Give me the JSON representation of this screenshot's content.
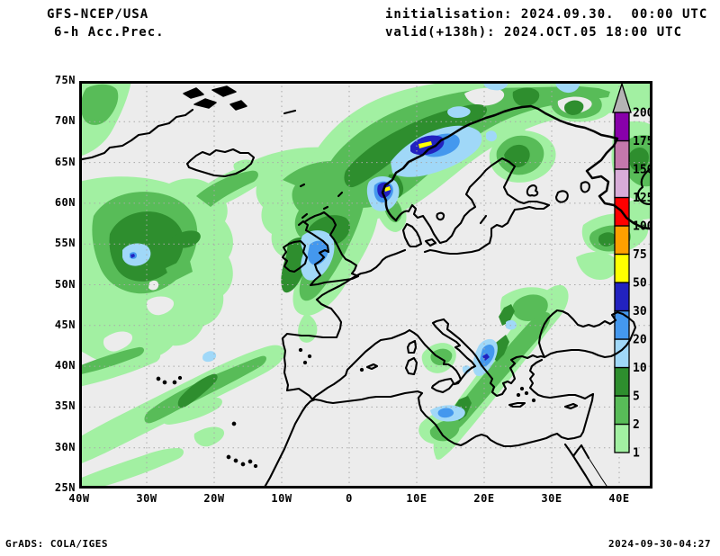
{
  "header": {
    "model": "GFS-NCEP/USA",
    "product": "6-h Acc.Prec.",
    "init_label": "initialisation: 2024.09.30.  00:00 UTC",
    "valid_label": "valid(+138h): 2024.OCT.05 18:00 UTC"
  },
  "footer": {
    "grads_credit": "GrADS: COLA/IGES",
    "timestamp": "2024-09-30-04:27"
  },
  "map": {
    "lat_labels": [
      "75N",
      "70N",
      "65N",
      "60N",
      "55N",
      "50N",
      "45N",
      "40N",
      "35N",
      "30N",
      "25N"
    ],
    "lon_labels": [
      "40W",
      "30W",
      "20W",
      "10W",
      "0",
      "10E",
      "20E",
      "30E",
      "40E"
    ],
    "background_color": "#ececec",
    "coastline_color": "#000000",
    "grid_color": "#a8a8a8"
  },
  "colorbar": {
    "levels": [
      1,
      2,
      5,
      10,
      20,
      30,
      50,
      75,
      100,
      125,
      150,
      175,
      200
    ],
    "colors": [
      "#a2f0a2",
      "#58bc58",
      "#2e8e2e",
      "#a0d8f8",
      "#4498ee",
      "#2222c0",
      "#ffff00",
      "#ffa000",
      "#ff0000",
      "#d8acd8",
      "#c478ac",
      "#8800aa"
    ],
    "overflow_color": "#b4b4b4"
  },
  "chart_data": {
    "type": "heatmap",
    "title": "GFS-NCEP/USA 6-h Acc.Prec.",
    "initialisation": "2024.09.30. 00:00 UTC",
    "valid": "(+138h) 2024.OCT.05 18:00 UTC",
    "x": {
      "label": "longitude",
      "ticks": [
        "40W",
        "30W",
        "20W",
        "10W",
        "0",
        "10E",
        "20E",
        "30E",
        "40E"
      ]
    },
    "y": {
      "label": "latitude",
      "ticks": [
        "25N",
        "30N",
        "35N",
        "40N",
        "45N",
        "50N",
        "55N",
        "60N",
        "65N",
        "70N",
        "75N"
      ]
    },
    "legend": {
      "position": "right",
      "levels": [
        1,
        2,
        5,
        10,
        20,
        30,
        50,
        75,
        100,
        125,
        150,
        175,
        200
      ],
      "colors": [
        "#a2f0a2",
        "#58bc58",
        "#2e8e2e",
        "#a0d8f8",
        "#4498ee",
        "#2222c0",
        "#ffff00",
        "#ffa000",
        "#ff0000",
        "#d8acd8",
        "#c478ac",
        "#8800aa"
      ],
      "overflow_color": "#b4b4b4"
    },
    "grid": "dotted, every 10 deg lon / 5 deg lat",
    "notable_features": [
      {
        "area": "Norwegian coast near Lofoten (~10E,68N)",
        "max_band": "50-75"
      },
      {
        "area": "Norwegian coast near Bergen (~5E,62N)",
        "max_band": "50-75"
      },
      {
        "area": "cyclonic spiral west of Ireland (~30W,52N)",
        "max_band": "30-50"
      },
      {
        "area": "Irish Sea / England (~4W,53N)",
        "max_band": "20-30"
      },
      {
        "area": "southern Italy / Ionian Sea (~17E,39N)",
        "max_band": "30-50"
      },
      {
        "area": "Sicily channel (~13E,35N)",
        "max_band": "20-30"
      },
      {
        "area": "NE-SW band Balkans to Libya",
        "max_band": "5-10"
      },
      {
        "area": "SW-NE band mid-Atlantic (35W-25W, 30N-40N)",
        "max_band": "5-10"
      },
      {
        "area": "Kola peninsula / NW Russia",
        "max_band": "5-10"
      }
    ]
  }
}
